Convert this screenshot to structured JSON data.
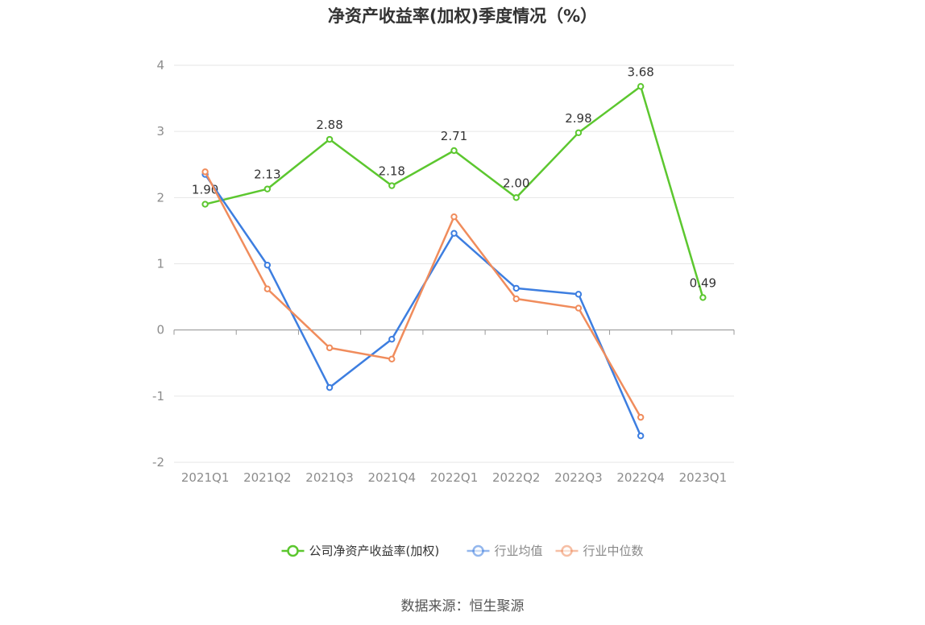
{
  "title": "净资产收益率(加权)季度情况（%）",
  "source": "数据来源：恒生聚源",
  "chart_data": {
    "type": "line",
    "title": "净资产收益率(加权)季度情况（%）",
    "categories": [
      "2021Q1",
      "2021Q2",
      "2021Q3",
      "2021Q4",
      "2022Q1",
      "2022Q2",
      "2022Q3",
      "2022Q4",
      "2023Q1"
    ],
    "ylim": [
      -2,
      4
    ],
    "yticks": [
      -2,
      -1,
      0,
      1,
      2,
      3,
      4
    ],
    "grid": true,
    "legend_position": "bottom",
    "series": [
      {
        "name": "公司净资产收益率(加权)",
        "color": "#5cc72f",
        "values": [
          1.9,
          2.13,
          2.88,
          2.18,
          2.71,
          2.0,
          2.98,
          3.68,
          0.49
        ],
        "labels": [
          "1.90",
          "2.13",
          "2.88",
          "2.18",
          "2.71",
          "2.00",
          "2.98",
          "3.68",
          "0.49"
        ],
        "show_labels": true
      },
      {
        "name": "行业均值",
        "color": "#3d7ee0",
        "values": [
          2.35,
          0.98,
          -0.87,
          -0.14,
          1.46,
          0.63,
          0.54,
          -1.6,
          null
        ],
        "show_labels": false
      },
      {
        "name": "行业中位数",
        "color": "#f08c5c",
        "values": [
          2.39,
          0.62,
          -0.27,
          -0.44,
          1.71,
          0.47,
          0.33,
          -1.32,
          null
        ],
        "show_labels": false
      }
    ]
  }
}
